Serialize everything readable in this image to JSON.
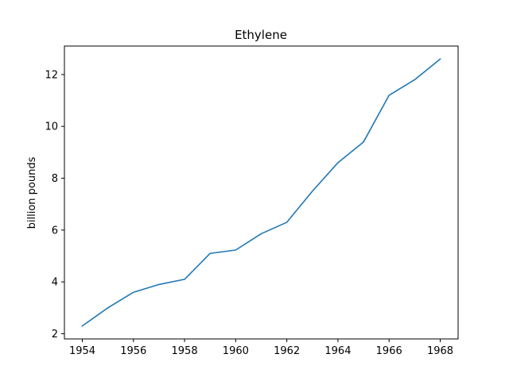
{
  "chart_data": {
    "type": "line",
    "title": "Ethylene",
    "xlabel": "",
    "ylabel": "billion pounds",
    "xlim": [
      1953.3,
      1968.7
    ],
    "ylim": [
      1.8,
      13.1
    ],
    "xticks": [
      1954,
      1956,
      1958,
      1960,
      1962,
      1964,
      1966,
      1968
    ],
    "yticks": [
      2,
      4,
      6,
      8,
      10,
      12
    ],
    "grid": false,
    "series": [
      {
        "color": "#1f77b4",
        "x": [
          1954,
          1955,
          1956,
          1957,
          1958,
          1959,
          1960,
          1961,
          1962,
          1963,
          1964,
          1965,
          1966,
          1967,
          1968
        ],
        "y": [
          2.3,
          3.0,
          3.6,
          3.9,
          4.1,
          5.1,
          5.23,
          5.86,
          6.3,
          7.5,
          8.6,
          9.4,
          11.2,
          11.8,
          12.6
        ]
      }
    ]
  }
}
